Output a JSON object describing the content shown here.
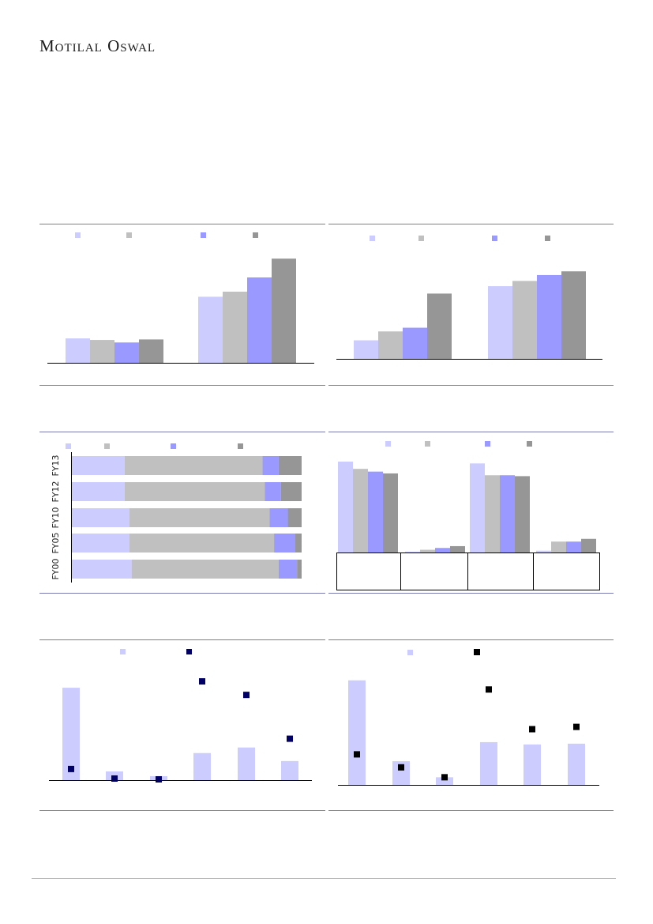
{
  "brand": {
    "name": "Motilal Oswal"
  },
  "colors": {
    "series1": "#ccccff",
    "series2": "#c0c0c0",
    "series3": "#9999ff",
    "series4": "#969696",
    "marker_navy": "#000066",
    "marker_black": "#000000",
    "rule": "#7a7ab3",
    "axis": "#000000"
  },
  "chart_data": [
    {
      "id": "c1",
      "type": "bar",
      "categories": [
        "",
        ""
      ],
      "series": [
        {
          "values": [
            48,
            130
          ]
        },
        {
          "values": [
            45,
            140
          ]
        },
        {
          "values": [
            40,
            168
          ]
        },
        {
          "values": [
            46,
            205
          ]
        }
      ],
      "ylim": [
        0,
        210
      ],
      "grid": false,
      "legend": "top"
    },
    {
      "id": "c2",
      "type": "bar",
      "categories": [
        "",
        ""
      ],
      "series": [
        {
          "values": [
            25,
            98
          ]
        },
        {
          "values": [
            37,
            105
          ]
        },
        {
          "values": [
            42,
            113
          ]
        },
        {
          "values": [
            88,
            118
          ]
        }
      ],
      "ylim": [
        0,
        130
      ],
      "grid": false,
      "legend": "top"
    },
    {
      "id": "c3",
      "type": "bar",
      "orientation": "horizontal",
      "stacked": true,
      "categories": [
        "FY00",
        "FY05",
        "FY10",
        "FY12",
        "FY13"
      ],
      "series": [
        {
          "values": [
            26,
            25,
            25,
            23,
            23
          ]
        },
        {
          "values": [
            64,
            63,
            61,
            61,
            60
          ]
        },
        {
          "values": [
            8,
            9,
            8,
            7,
            7
          ]
        },
        {
          "values": [
            2,
            3,
            6,
            9,
            10
          ]
        }
      ],
      "xlim": [
        0,
        100
      ],
      "grid": false,
      "legend": "top"
    },
    {
      "id": "c4",
      "type": "bar",
      "categories": [
        "",
        "",
        "",
        ""
      ],
      "series": [
        {
          "values": [
            100,
            1,
            98,
            2
          ]
        },
        {
          "values": [
            92,
            3,
            85,
            12
          ]
        },
        {
          "values": [
            89,
            5,
            85,
            12
          ]
        },
        {
          "values": [
            87,
            7,
            84,
            15
          ]
        }
      ],
      "ylim": [
        0,
        100
      ],
      "grid": false,
      "legend": "top"
    },
    {
      "id": "c5",
      "type": "bar",
      "categories": [
        "",
        "",
        "",
        "",
        "",
        ""
      ],
      "bars": [
        116,
        11,
        5,
        34,
        41,
        24
      ],
      "markers": [
        14,
        2,
        1,
        124,
        107,
        52
      ],
      "ylim": [
        0,
        130
      ],
      "grid": false,
      "legend": "top"
    },
    {
      "id": "c6",
      "type": "bar",
      "categories": [
        "",
        "",
        "",
        "",
        "",
        ""
      ],
      "bars": [
        137,
        31,
        10,
        56,
        53,
        54
      ],
      "markers": [
        40,
        23,
        10,
        125,
        73,
        76
      ],
      "ylim": [
        0,
        145
      ],
      "grid": false,
      "legend": "top"
    }
  ]
}
